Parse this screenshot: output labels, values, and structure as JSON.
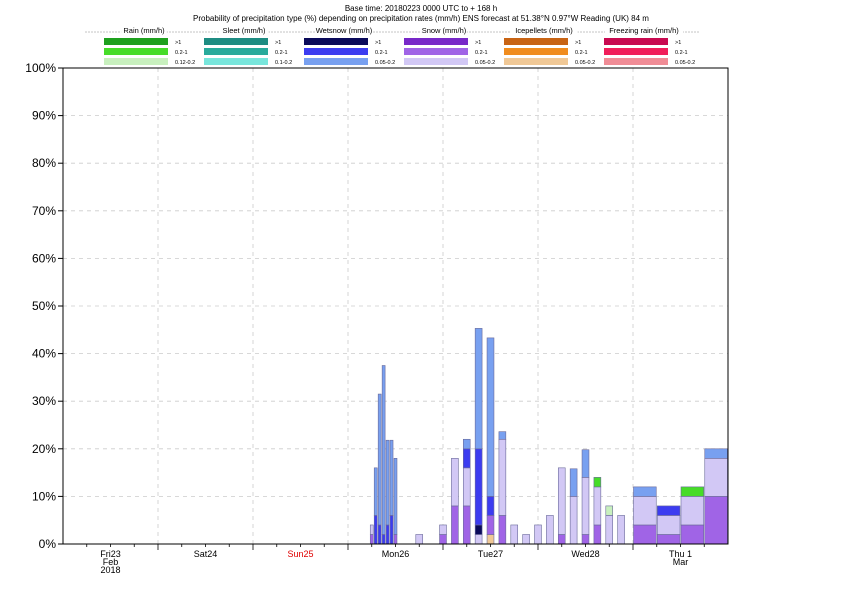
{
  "header": {
    "line1": "Base time: 20180223 0000 UTC to + 168 h",
    "line2": "Probability of precipitation type (%) depending on precipitation rates (mm/h) ENS forecast at 51.38°N  0.97°W Reading (UK) 84 m"
  },
  "legend": [
    {
      "title": "Rain (mm/h)",
      "colors": [
        "#1ea01e",
        "#46dc28",
        "#c8f0be"
      ],
      "labels": [
        ">1",
        "0.2-1",
        "0.12-0.2"
      ]
    },
    {
      "title": "Sleet (mm/h)",
      "colors": [
        "#1e8c82",
        "#28aa9b",
        "#78e6dc"
      ],
      "labels": [
        ">1",
        "0.2-1",
        "0.1-0.2"
      ]
    },
    {
      "title": "Wetsnow (mm/h)",
      "colors": [
        "#0a0a5a",
        "#3c3cf0",
        "#78a0f0"
      ],
      "labels": [
        ">1",
        "0.2-1",
        "0.05-0.2"
      ]
    },
    {
      "title": "Snow (mm/h)",
      "colors": [
        "#7828c8",
        "#a064e6",
        "#d2c8f5"
      ],
      "labels": [
        ">1",
        "0.2-1",
        "0.05-0.2"
      ]
    },
    {
      "title": "Icepellets (mm/h)",
      "colors": [
        "#c86414",
        "#f08c1e",
        "#f0c896"
      ],
      "labels": [
        ">1",
        "0.2-1",
        "0.05-0.2"
      ]
    },
    {
      "title": "Freezing rain (mm/h)",
      "colors": [
        "#c80a50",
        "#f01e5a",
        "#f08c96"
      ],
      "labels": [
        ">1",
        "0.2-1",
        "0.05-0.2"
      ]
    }
  ],
  "chart_data": {
    "type": "bar",
    "stacked": true,
    "ylim": [
      0,
      100
    ],
    "xlim_hours": [
      0,
      168
    ],
    "y_ticks": [
      "0%",
      "10%",
      "20%",
      "30%",
      "40%",
      "50%",
      "60%",
      "70%",
      "80%",
      "90%",
      "100%"
    ],
    "x_ticks": [
      {
        "lines": [
          "Fri23",
          "Feb",
          "2018"
        ],
        "color": "#000000"
      },
      {
        "lines": [
          "Sat24"
        ],
        "color": "#000000"
      },
      {
        "lines": [
          "Sun25"
        ],
        "color": "#e00000"
      },
      {
        "lines": [
          "Mon26"
        ],
        "color": "#000000"
      },
      {
        "lines": [
          "Tue27"
        ],
        "color": "#000000"
      },
      {
        "lines": [
          "Wed28"
        ],
        "color": "#000000"
      },
      {
        "lines": [
          "Thu 1",
          "Mar"
        ],
        "color": "#000000"
      }
    ],
    "grid": "dashed",
    "series_colors": {
      "wetsnow_light": "#78a0f0",
      "wetsnow_mod": "#3c3cf0",
      "wetsnow_heavy": "#0a0a5a",
      "snow_light": "#d2c8f5",
      "snow_mod": "#a064e6",
      "rain_mod": "#46dc28",
      "rain_light": "#c8f0be",
      "ice_light": "#f0c896"
    },
    "bars": [
      {
        "h": 78,
        "w": 1,
        "seg": [
          [
            "snow_mod",
            2
          ],
          [
            "snow_light",
            2
          ]
        ]
      },
      {
        "h": 79,
        "w": 1,
        "seg": [
          [
            "wetsnow_mod",
            6
          ],
          [
            "wetsnow_light",
            10
          ]
        ]
      },
      {
        "h": 80,
        "w": 1,
        "seg": [
          [
            "wetsnow_mod",
            4
          ],
          [
            "wetsnow_light",
            27.5
          ]
        ]
      },
      {
        "h": 81,
        "w": 1,
        "seg": [
          [
            "wetsnow_mod",
            2
          ],
          [
            "wetsnow_light",
            35.5
          ]
        ]
      },
      {
        "h": 82,
        "w": 1,
        "seg": [
          [
            "wetsnow_mod",
            4
          ],
          [
            "wetsnow_light",
            17.8
          ]
        ]
      },
      {
        "h": 83,
        "w": 1,
        "seg": [
          [
            "wetsnow_mod",
            6
          ],
          [
            "wetsnow_light",
            15.8
          ]
        ]
      },
      {
        "h": 84,
        "w": 1,
        "seg": [
          [
            "snow_mod",
            2
          ],
          [
            "wetsnow_light",
            16
          ]
        ]
      },
      {
        "h": 90,
        "w": 2,
        "seg": [
          [
            "snow_light",
            2
          ]
        ]
      },
      {
        "h": 96,
        "w": 2,
        "seg": [
          [
            "snow_mod",
            2
          ],
          [
            "snow_light",
            2
          ]
        ]
      },
      {
        "h": 99,
        "w": 2,
        "seg": [
          [
            "snow_mod",
            8
          ],
          [
            "snow_light",
            10
          ]
        ]
      },
      {
        "h": 102,
        "w": 2,
        "seg": [
          [
            "snow_mod",
            8
          ],
          [
            "snow_light",
            8
          ],
          [
            "wetsnow_mod",
            4
          ],
          [
            "wetsnow_light",
            2
          ]
        ]
      },
      {
        "h": 105,
        "w": 2,
        "seg": [
          [
            "snow_light",
            2
          ],
          [
            "wetsnow_heavy",
            2
          ],
          [
            "wetsnow_mod",
            16
          ],
          [
            "wetsnow_light",
            25.3
          ]
        ]
      },
      {
        "h": 108,
        "w": 2,
        "seg": [
          [
            "ice_light",
            2
          ],
          [
            "snow_mod",
            4
          ],
          [
            "wetsnow_mod",
            4
          ],
          [
            "wetsnow_light",
            33.3
          ]
        ]
      },
      {
        "h": 111,
        "w": 2,
        "seg": [
          [
            "snow_mod",
            6
          ],
          [
            "snow_light",
            16
          ],
          [
            "wetsnow_light",
            1.6
          ]
        ]
      },
      {
        "h": 114,
        "w": 2,
        "seg": [
          [
            "snow_light",
            4
          ]
        ]
      },
      {
        "h": 117,
        "w": 2,
        "seg": [
          [
            "snow_light",
            2
          ]
        ]
      },
      {
        "h": 120,
        "w": 2,
        "seg": [
          [
            "snow_light",
            4
          ]
        ]
      },
      {
        "h": 123,
        "w": 2,
        "seg": [
          [
            "snow_light",
            6
          ]
        ]
      },
      {
        "h": 126,
        "w": 2,
        "seg": [
          [
            "snow_mod",
            2
          ],
          [
            "snow_light",
            14
          ],
          [
            "wetsnow_light",
            0
          ]
        ]
      },
      {
        "h": 129,
        "w": 2,
        "seg": [
          [
            "snow_light",
            10
          ],
          [
            "wetsnow_light",
            5.8
          ]
        ]
      },
      {
        "h": 132,
        "w": 2,
        "seg": [
          [
            "snow_mod",
            2
          ],
          [
            "snow_light",
            12
          ],
          [
            "wetsnow_light",
            5.8
          ]
        ]
      },
      {
        "h": 135,
        "w": 2,
        "seg": [
          [
            "snow_mod",
            4
          ],
          [
            "snow_light",
            8
          ],
          [
            "rain_light",
            0
          ],
          [
            "rain_mod",
            2
          ]
        ]
      },
      {
        "h": 138,
        "w": 2,
        "seg": [
          [
            "snow_light",
            6
          ],
          [
            "rain_light",
            2
          ]
        ]
      },
      {
        "h": 141,
        "w": 2,
        "seg": [
          [
            "snow_light",
            6
          ]
        ]
      },
      {
        "h": 147,
        "w": 6,
        "seg": [
          [
            "snow_mod",
            4
          ],
          [
            "snow_light",
            6
          ],
          [
            "wetsnow_light",
            2
          ]
        ]
      },
      {
        "h": 153,
        "w": 6,
        "seg": [
          [
            "snow_mod",
            2
          ],
          [
            "snow_light",
            4
          ],
          [
            "wetsnow_mod",
            2
          ]
        ]
      },
      {
        "h": 159,
        "w": 6,
        "seg": [
          [
            "snow_mod",
            4
          ],
          [
            "snow_light",
            6
          ],
          [
            "rain_mod",
            2
          ]
        ]
      },
      {
        "h": 165,
        "w": 6,
        "seg": [
          [
            "snow_mod",
            10
          ],
          [
            "snow_light",
            8
          ],
          [
            "wetsnow_light",
            2
          ]
        ]
      }
    ]
  }
}
